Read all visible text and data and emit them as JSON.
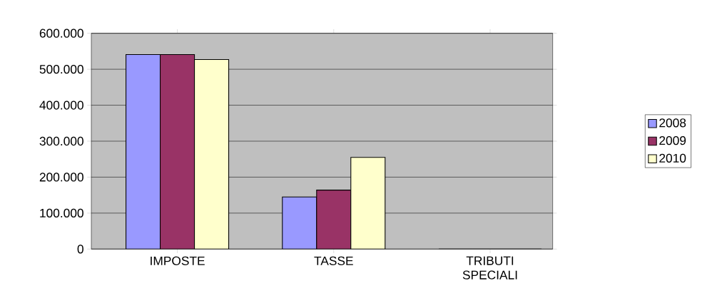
{
  "chart_data": {
    "type": "bar",
    "categories": [
      "IMPOSTE",
      "TASSE",
      "TRIBUTI SPECIALI"
    ],
    "series": [
      {
        "name": "2008",
        "color": "#9999ff",
        "values": [
          541000,
          145000,
          0
        ]
      },
      {
        "name": "2009",
        "color": "#993366",
        "values": [
          541000,
          164000,
          0
        ]
      },
      {
        "name": "2010",
        "color": "#ffffcc",
        "values": [
          527000,
          255000,
          0
        ]
      }
    ],
    "ylim": [
      0,
      600000
    ],
    "yticks": [
      0,
      {
        "value": 100000,
        "label": "100.000"
      },
      {
        "value": 200000,
        "label": "200.000"
      },
      {
        "value": 300000,
        "label": "300.000"
      },
      {
        "value": 400000,
        "label": "400.000"
      },
      {
        "value": 500000,
        "label": "500.000"
      },
      {
        "value": 600000,
        "label": "600.000"
      }
    ],
    "grid": "y",
    "legend": "right"
  }
}
